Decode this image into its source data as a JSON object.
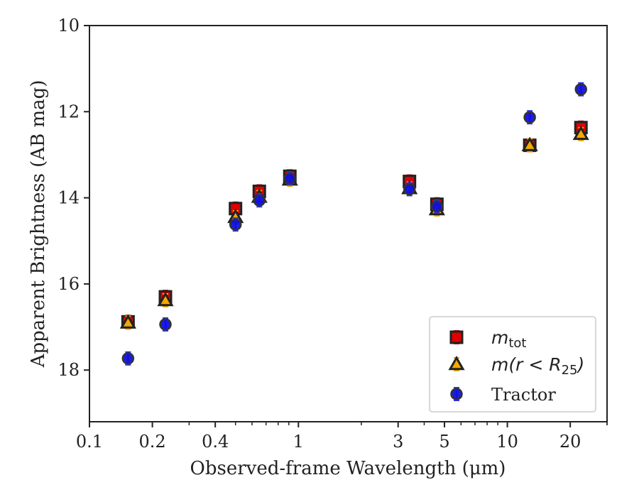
{
  "chart_data": {
    "type": "scatter",
    "xlabel": "Observed-frame Wavelength (μm)",
    "ylabel": "Apparent Brightness (AB mag)",
    "xscale": "log",
    "xlim": [
      0.1,
      30
    ],
    "ylim": [
      19.2,
      10
    ],
    "y_inverted": true,
    "xticks": [
      {
        "value": 0.1,
        "label": "0.1"
      },
      {
        "value": 0.2,
        "label": "0.2"
      },
      {
        "value": 0.4,
        "label": "0.4"
      },
      {
        "value": 1,
        "label": "1"
      },
      {
        "value": 3,
        "label": "3"
      },
      {
        "value": 5,
        "label": "5"
      },
      {
        "value": 10,
        "label": "10"
      },
      {
        "value": 20,
        "label": "20"
      }
    ],
    "yticks": [
      {
        "value": 10,
        "label": "10"
      },
      {
        "value": 12,
        "label": "12"
      },
      {
        "value": 14,
        "label": "14"
      },
      {
        "value": 16,
        "label": "16"
      },
      {
        "value": 18,
        "label": "18"
      }
    ],
    "grid": false,
    "legend_position": "bottom-right",
    "series": [
      {
        "name": "m_tot",
        "marker": "square",
        "color": "#e00000",
        "errcolor": "#e00000",
        "edgecolor": "#222222",
        "points": [
          {
            "x": 0.153,
            "y": 16.88
          },
          {
            "x": 0.231,
            "y": 16.3
          },
          {
            "x": 0.5,
            "y": 14.25
          },
          {
            "x": 0.65,
            "y": 13.85
          },
          {
            "x": 0.91,
            "y": 13.5
          },
          {
            "x": 3.4,
            "y": 13.62
          },
          {
            "x": 4.6,
            "y": 14.15
          },
          {
            "x": 12.8,
            "y": 12.78
          },
          {
            "x": 22.5,
            "y": 12.37
          }
        ]
      },
      {
        "name": "m(r < R25)",
        "marker": "triangle",
        "color": "#f5a800",
        "errcolor": "#f5a800",
        "edgecolor": "#222222",
        "points": [
          {
            "x": 0.153,
            "y": 16.9
          },
          {
            "x": 0.231,
            "y": 16.38
          },
          {
            "x": 0.5,
            "y": 14.45
          },
          {
            "x": 0.65,
            "y": 13.98
          },
          {
            "x": 0.91,
            "y": 13.58
          },
          {
            "x": 3.4,
            "y": 13.78
          },
          {
            "x": 4.6,
            "y": 14.27
          },
          {
            "x": 12.8,
            "y": 12.78
          },
          {
            "x": 22.5,
            "y": 12.52
          }
        ]
      },
      {
        "name": "Tractor",
        "marker": "circle",
        "color": "#1010e0",
        "errcolor": "#3030ff",
        "edgecolor": "#333333",
        "points": [
          {
            "x": 0.153,
            "y": 17.73
          },
          {
            "x": 0.231,
            "y": 16.94
          },
          {
            "x": 0.5,
            "y": 14.62
          },
          {
            "x": 0.65,
            "y": 14.06
          },
          {
            "x": 0.91,
            "y": 13.55
          },
          {
            "x": 3.4,
            "y": 13.8
          },
          {
            "x": 4.6,
            "y": 14.2
          },
          {
            "x": 12.8,
            "y": 12.13
          },
          {
            "x": 22.5,
            "y": 11.48
          }
        ]
      }
    ]
  }
}
